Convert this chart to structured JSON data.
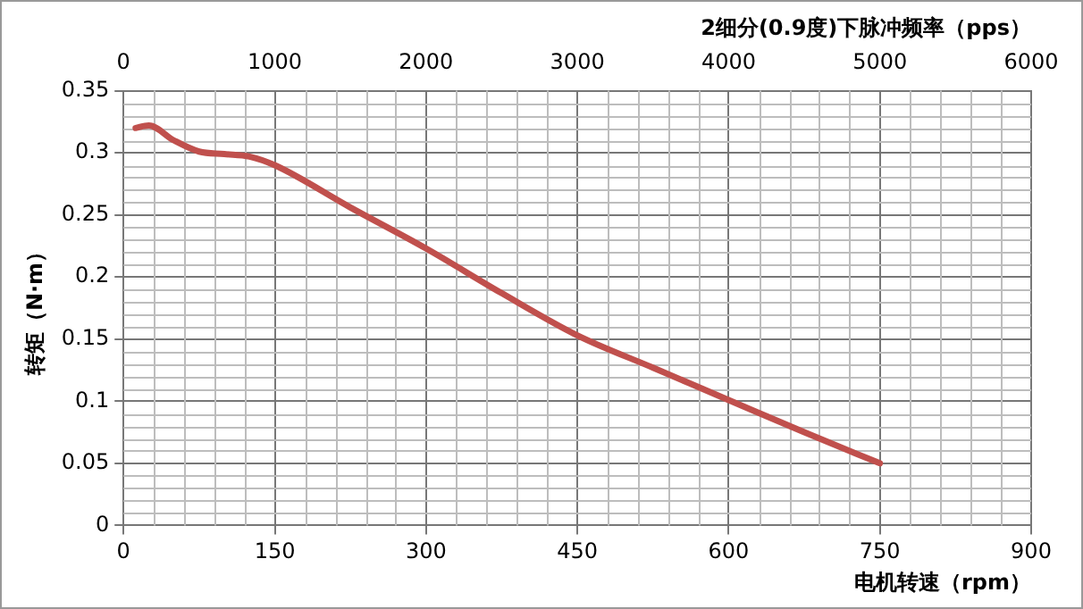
{
  "chart_data": {
    "type": "line",
    "xlabel": "电机转速（rpm）",
    "ylabel": "转矩（N·m）",
    "x2label": "2细分(0.9度)下脉冲频率（pps）",
    "xlim": [
      0,
      900
    ],
    "xticks": [
      0,
      150,
      300,
      450,
      600,
      750,
      900
    ],
    "x2lim": [
      0,
      6000
    ],
    "x2ticks": [
      0,
      1000,
      2000,
      3000,
      4000,
      5000,
      6000
    ],
    "ylim": [
      0,
      0.35
    ],
    "yticks": [
      0,
      0.05,
      0.1,
      0.15,
      0.2,
      0.25,
      0.3,
      0.35
    ],
    "grid": true,
    "legend": false,
    "marker": "none",
    "line_style": "solid",
    "series": [
      {
        "color": "#c0504d",
        "x": [
          12,
          25,
          50,
          75,
          100,
          125,
          150,
          225,
          300,
          375,
          450,
          525,
          600,
          675,
          750
        ],
        "values": [
          0.32,
          0.322,
          0.31,
          0.301,
          0.299,
          0.297,
          0.29,
          0.256,
          0.223,
          0.187,
          0.153,
          0.127,
          0.101,
          0.075,
          0.05
        ]
      }
    ]
  }
}
